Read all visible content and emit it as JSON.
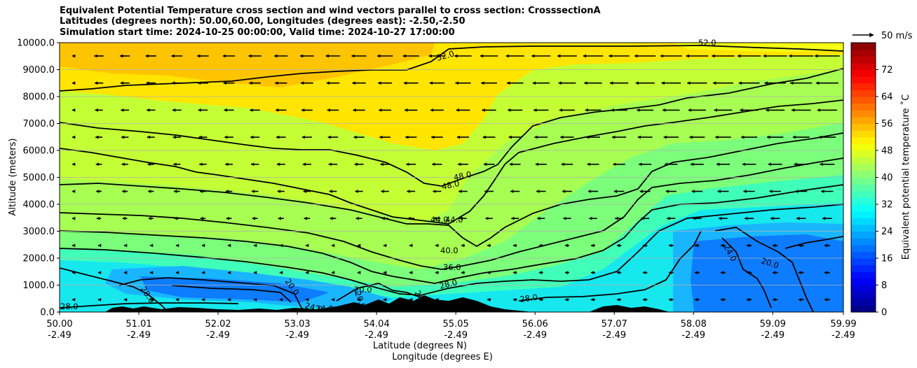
{
  "title_lines": [
    "Equivalent Potential Temperature cross section and wind vectors parallel to cross section: CrosssectionA",
    "Latitudes (degrees north): 50.00,60.00, Longitudes (degrees east): -2.50,-2.50",
    "Simulation start time: 2024-10-25 00:00:00, Valid time: 2024-10-27 17:00:00"
  ],
  "chart_data": {
    "type": "contourf",
    "ylabel": "Altitude (meters)",
    "xlabel_line1": "Latitude (degrees N)",
    "xlabel_line2": "Longitude (degrees E)",
    "ylim": [
      0,
      10000
    ],
    "xlim": [
      50.0,
      59.99
    ],
    "y_ticks": [
      "0.0",
      "1000.0",
      "2000.0",
      "3000.0",
      "4000.0",
      "5000.0",
      "6000.0",
      "7000.0",
      "8000.0",
      "9000.0",
      "10000.0"
    ],
    "y_tick_values": [
      0,
      1000,
      2000,
      3000,
      4000,
      5000,
      6000,
      7000,
      8000,
      9000,
      10000
    ],
    "x_ticks": [
      {
        "value": 50.0,
        "lat": "50.00",
        "lon": "-2.49"
      },
      {
        "value": 51.01,
        "lat": "51.01",
        "lon": "-2.49"
      },
      {
        "value": 52.02,
        "lat": "52.02",
        "lon": "-2.49"
      },
      {
        "value": 53.03,
        "lat": "53.03",
        "lon": "-2.49"
      },
      {
        "value": 54.04,
        "lat": "54.04",
        "lon": "-2.49"
      },
      {
        "value": 55.05,
        "lat": "55.05",
        "lon": "-2.49"
      },
      {
        "value": 56.06,
        "lat": "56.06",
        "lon": "-2.49"
      },
      {
        "value": 57.07,
        "lat": "57.07",
        "lon": "-2.49"
      },
      {
        "value": 58.08,
        "lat": "58.08",
        "lon": "-2.49"
      },
      {
        "value": 59.09,
        "lat": "59.09",
        "lon": "-2.49"
      },
      {
        "value": 59.99,
        "lat": "59.99",
        "lon": "-2.49"
      }
    ],
    "colorbar": {
      "label": "Equivalent potential temperature ˚C",
      "ticks": [
        "0",
        "8",
        "16",
        "24",
        "32",
        "40",
        "48",
        "56",
        "64",
        "72"
      ],
      "tick_values": [
        0,
        8,
        16,
        24,
        32,
        40,
        48,
        56,
        64,
        72
      ],
      "range": [
        0,
        80
      ]
    },
    "quiver_key": "50 m/s",
    "contour_labels": [
      "52.0",
      "52.0",
      "48.0",
      "48.0",
      "44.0",
      "44.0",
      "40.0",
      "36.0",
      "28.0",
      "28.0",
      "28.0",
      "28.0",
      "20.0",
      "20.0",
      "20.0",
      "24.0",
      "24.0",
      "24.0",
      "24.0",
      "20.0"
    ],
    "contour_levels": [
      20,
      24,
      28,
      32,
      36,
      40,
      44,
      48,
      52
    ]
  }
}
